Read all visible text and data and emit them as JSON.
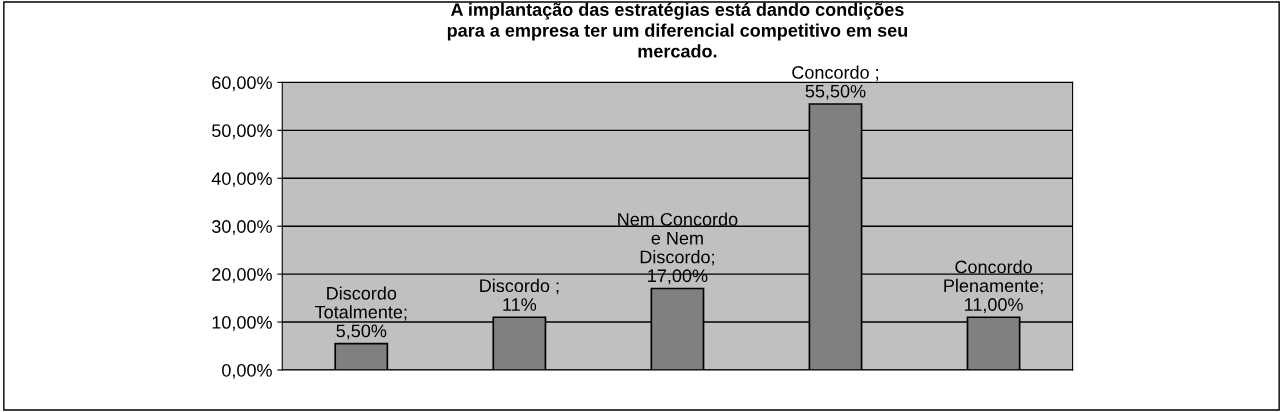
{
  "chart_data": {
    "type": "bar",
    "title": "A implantação das estratégias está dando condições\npara a empresa ter um diferencial competitivo em seu\nmercado.",
    "categories": [
      null,
      null,
      null,
      null,
      null
    ],
    "values": [
      5.5,
      11,
      17,
      55.5,
      11
    ],
    "color": "#808080",
    "value_labels": [
      "Discordo\nTotalmente;\n5,50%",
      "Discordo ;\n11%",
      "Nem Concordo\ne Nem\nDiscordo;\n17,00%",
      "Concordo ;\n55,50%",
      "Concordo\nPlenamente;\n11,00%"
    ],
    "ylim": [
      0,
      60
    ],
    "yticks": [
      {
        "value": 0,
        "label": "0,00%"
      },
      {
        "value": 10,
        "label": "10,00%"
      },
      {
        "value": 20,
        "label": "20,00%"
      },
      {
        "value": 30,
        "label": "30,00%"
      },
      {
        "value": 40,
        "label": "40,00%"
      },
      {
        "value": 50,
        "label": "50,00%"
      },
      {
        "value": 60,
        "label": "60,00%"
      }
    ],
    "grid": "y",
    "legend": false
  }
}
